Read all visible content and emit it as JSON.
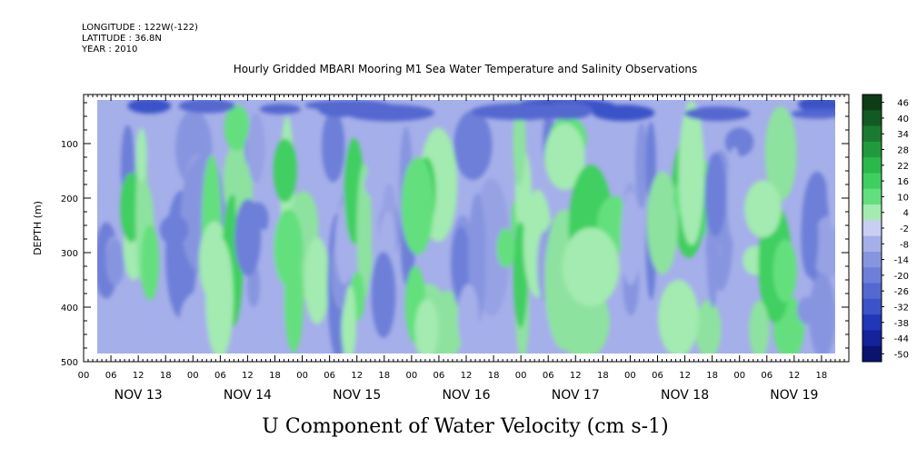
{
  "header": {
    "longitude": "LONGITUDE : 122W(-122)",
    "latitude": "LATITUDE : 36.8N",
    "year": "YEAR : 2010"
  },
  "chart_data": {
    "type": "heatmap",
    "title": "Hourly Gridded MBARI Mooring M1 Sea Water Temperature and Salinity Observations",
    "xlabel": "U Component of Water Velocity (cm s-1)",
    "ylabel": "DEPTH (m)",
    "y_ticks": [
      100,
      200,
      300,
      400,
      500
    ],
    "ylim": [
      500,
      10
    ],
    "data_depth_range": [
      20,
      485
    ],
    "x_hour_ticks": [
      "00",
      "06",
      "12",
      "18",
      "00",
      "06",
      "12",
      "18",
      "00",
      "06",
      "12",
      "18",
      "00",
      "06",
      "12",
      "18",
      "00",
      "06",
      "12",
      "18",
      "00",
      "06",
      "12",
      "18",
      "00",
      "06",
      "12",
      "18"
    ],
    "days": [
      "NOV 13",
      "NOV 14",
      "NOV 15",
      "NOV 16",
      "NOV 17",
      "NOV 18",
      "NOV 19"
    ],
    "data_hours": [
      3,
      165
    ],
    "colorbar": {
      "labels": [
        "46",
        "40",
        "34",
        "28",
        "22",
        "16",
        "10",
        "4",
        "-2",
        "-8",
        "-14",
        "-20",
        "-26",
        "-32",
        "-38",
        "-44",
        "-50"
      ],
      "colors": [
        "#0d3d17",
        "#125a23",
        "#1a7a30",
        "#219a3d",
        "#2bb84b",
        "#3fcf60",
        "#63e07d",
        "#a3ebb0",
        "#c8cff2",
        "#a5afea",
        "#8795e0",
        "#6d7fd8",
        "#5468d0",
        "#3b52c8",
        "#2236b8",
        "#14239a",
        "#0a1470"
      ]
    },
    "velocity_bands": [
      {
        "from_hour": 3,
        "to_hour": 10,
        "sign": "negative"
      },
      {
        "from_hour": 10,
        "to_hour": 16,
        "sign": "positive"
      },
      {
        "from_hour": 16,
        "to_hour": 28,
        "sign": "negative"
      },
      {
        "from_hour": 28,
        "to_hour": 36,
        "sign": "positive"
      },
      {
        "from_hour": 36,
        "to_hour": 44,
        "sign": "negative"
      },
      {
        "from_hour": 44,
        "to_hour": 52,
        "sign": "positive"
      },
      {
        "from_hour": 52,
        "to_hour": 58,
        "sign": "negative"
      },
      {
        "from_hour": 58,
        "to_hour": 64,
        "sign": "positive"
      },
      {
        "from_hour": 64,
        "to_hour": 72,
        "sign": "negative"
      },
      {
        "from_hour": 72,
        "to_hour": 82,
        "sign": "positive"
      },
      {
        "from_hour": 82,
        "to_hour": 92,
        "sign": "negative"
      },
      {
        "from_hour": 92,
        "to_hour": 100,
        "sign": "positive"
      },
      {
        "from_hour": 100,
        "to_hour": 104,
        "sign": "negative"
      },
      {
        "from_hour": 104,
        "to_hour": 120,
        "sign": "positive"
      },
      {
        "from_hour": 120,
        "to_hour": 126,
        "sign": "negative"
      },
      {
        "from_hour": 126,
        "to_hour": 138,
        "sign": "positive"
      },
      {
        "from_hour": 138,
        "to_hour": 146,
        "sign": "negative"
      },
      {
        "from_hour": 146,
        "to_hour": 156,
        "sign": "positive"
      },
      {
        "from_hour": 156,
        "to_hour": 165,
        "sign": "negative"
      }
    ]
  }
}
